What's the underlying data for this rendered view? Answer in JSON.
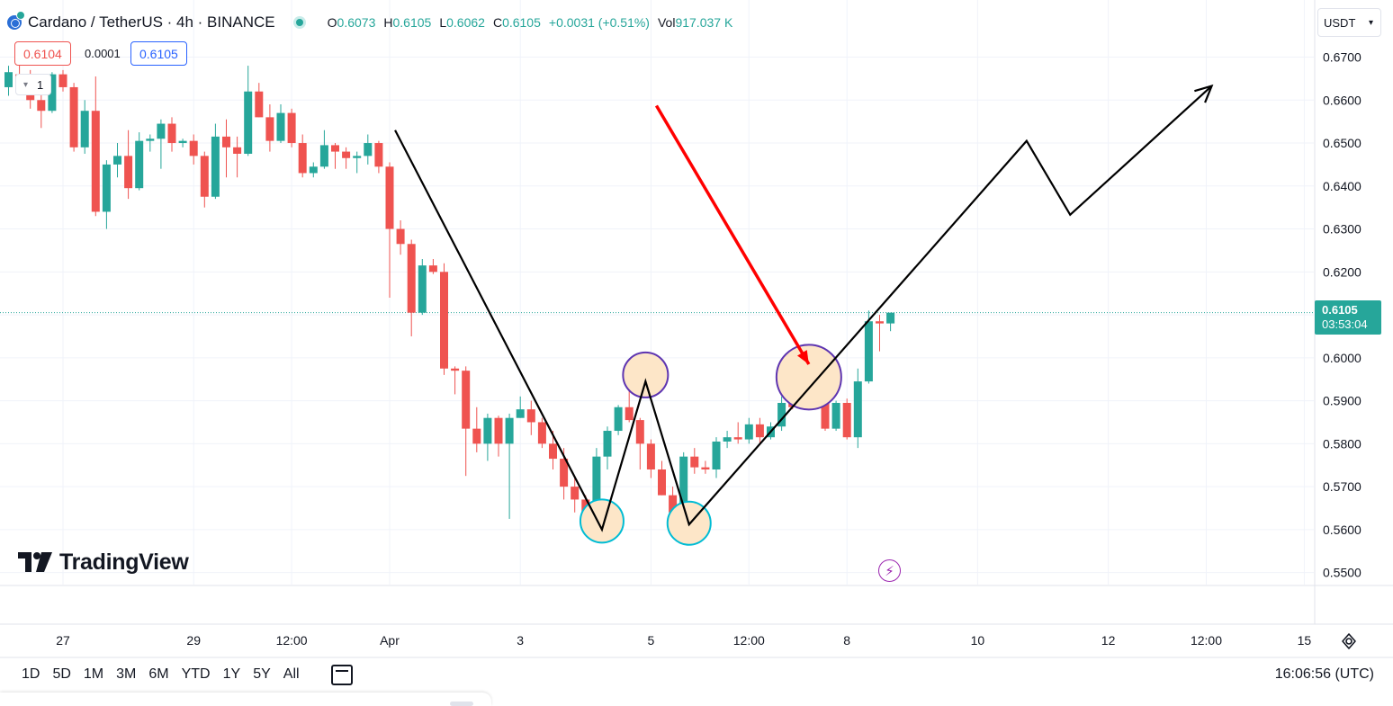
{
  "header": {
    "symbol": "Cardano / TetherUS · 4h · BINANCE",
    "ohlc": [
      {
        "key": "O",
        "value": "0.6073"
      },
      {
        "key": "H",
        "value": "0.6105"
      },
      {
        "key": "L",
        "value": "0.6062"
      },
      {
        "key": "C",
        "value": "0.6105"
      },
      {
        "key": "",
        "value": "+0.0031 (+0.51%)"
      },
      {
        "key": "Vol",
        "value": "917.037 K"
      }
    ]
  },
  "trade": {
    "sell": "0.6104",
    "spread": "0.0001",
    "buy": "0.6105",
    "quantity": "1"
  },
  "currency": "USDT",
  "last_price_tag": {
    "price": "0.6105",
    "countdown": "03:53:04"
  },
  "logo": "TradingView",
  "timeframes": [
    "1D",
    "5D",
    "1M",
    "3M",
    "6M",
    "YTD",
    "1Y",
    "5Y",
    "All"
  ],
  "clock": "16:06:56 (UTC)",
  "colors": {
    "up": "#26a69a",
    "down": "#ef5350",
    "grid": "#f0f3fa",
    "annotation_line": "#000000",
    "arrow": "#ff0000",
    "circle_fill": "#fde6c8"
  },
  "chart_data": {
    "type": "candlestick",
    "y_axis": {
      "ticks": [
        "0.6700",
        "0.6600",
        "0.6500",
        "0.6400",
        "0.6300",
        "0.6200",
        "0.6100",
        "0.6000",
        "0.5900",
        "0.5800",
        "0.5700",
        "0.5600",
        "0.5500"
      ],
      "range": [
        0.5472,
        0.6833
      ]
    },
    "x_axis": {
      "labels": [
        {
          "label": "27",
          "bar": 5
        },
        {
          "label": "29",
          "bar": 17
        },
        {
          "label": "12:00",
          "bar": 26
        },
        {
          "label": "Apr",
          "bar": 35
        },
        {
          "label": "3",
          "bar": 47
        },
        {
          "label": "5",
          "bar": 59
        },
        {
          "label": "12:00",
          "bar": 68
        },
        {
          "label": "8",
          "bar": 77
        },
        {
          "label": "10",
          "bar": 89
        },
        {
          "label": "12",
          "bar": 101
        },
        {
          "label": "12:00",
          "bar": 110
        },
        {
          "label": "15",
          "bar": 119
        }
      ]
    },
    "candles": [
      [
        0.663,
        0.6665,
        0.661,
        0.668
      ],
      [
        0.666,
        0.664,
        0.662,
        0.67
      ],
      [
        0.664,
        0.66,
        0.658,
        0.667
      ],
      [
        0.66,
        0.6575,
        0.6535,
        0.663
      ],
      [
        0.6575,
        0.666,
        0.657,
        0.6665
      ],
      [
        0.666,
        0.663,
        0.662,
        0.667
      ],
      [
        0.663,
        0.649,
        0.648,
        0.664
      ],
      [
        0.649,
        0.6575,
        0.6475,
        0.66
      ],
      [
        0.6575,
        0.634,
        0.633,
        0.6655
      ],
      [
        0.634,
        0.645,
        0.63,
        0.646
      ],
      [
        0.645,
        0.647,
        0.642,
        0.65
      ],
      [
        0.647,
        0.6395,
        0.637,
        0.653
      ],
      [
        0.6395,
        0.6505,
        0.639,
        0.6525
      ],
      [
        0.6505,
        0.651,
        0.648,
        0.652
      ],
      [
        0.651,
        0.6545,
        0.644,
        0.6555
      ],
      [
        0.6545,
        0.65,
        0.648,
        0.656
      ],
      [
        0.65,
        0.6505,
        0.649,
        0.651
      ],
      [
        0.6505,
        0.647,
        0.645,
        0.652
      ],
      [
        0.647,
        0.6375,
        0.635,
        0.648
      ],
      [
        0.6375,
        0.6515,
        0.637,
        0.6545
      ],
      [
        0.6515,
        0.649,
        0.642,
        0.6555
      ],
      [
        0.649,
        0.6475,
        0.642,
        0.6515
      ],
      [
        0.6475,
        0.662,
        0.647,
        0.668
      ],
      [
        0.662,
        0.656,
        0.656,
        0.664
      ],
      [
        0.656,
        0.6505,
        0.648,
        0.659
      ],
      [
        0.6505,
        0.657,
        0.65,
        0.659
      ],
      [
        0.657,
        0.65,
        0.649,
        0.658
      ],
      [
        0.65,
        0.643,
        0.642,
        0.652
      ],
      [
        0.643,
        0.6445,
        0.642,
        0.6455
      ],
      [
        0.6445,
        0.6495,
        0.644,
        0.653
      ],
      [
        0.6495,
        0.648,
        0.644,
        0.65
      ],
      [
        0.648,
        0.6465,
        0.644,
        0.649
      ],
      [
        0.6465,
        0.647,
        0.643,
        0.648
      ],
      [
        0.647,
        0.65,
        0.645,
        0.652
      ],
      [
        0.65,
        0.6445,
        0.643,
        0.6505
      ],
      [
        0.6445,
        0.63,
        0.614,
        0.6455
      ],
      [
        0.63,
        0.6265,
        0.624,
        0.632
      ],
      [
        0.6265,
        0.6105,
        0.605,
        0.6275
      ],
      [
        0.6105,
        0.6215,
        0.61,
        0.623
      ],
      [
        0.6215,
        0.62,
        0.6195,
        0.623
      ],
      [
        0.62,
        0.5975,
        0.596,
        0.622
      ],
      [
        0.5975,
        0.597,
        0.5915,
        0.598
      ],
      [
        0.597,
        0.5835,
        0.5725,
        0.598
      ],
      [
        0.5835,
        0.58,
        0.578,
        0.5885
      ],
      [
        0.58,
        0.586,
        0.576,
        0.587
      ],
      [
        0.586,
        0.58,
        0.577,
        0.5865
      ],
      [
        0.58,
        0.586,
        0.5625,
        0.587
      ],
      [
        0.586,
        0.588,
        0.586,
        0.591
      ],
      [
        0.588,
        0.585,
        0.582,
        0.59
      ],
      [
        0.585,
        0.58,
        0.579,
        0.586
      ],
      [
        0.58,
        0.5765,
        0.574,
        0.583
      ],
      [
        0.5765,
        0.57,
        0.567,
        0.579
      ],
      [
        0.57,
        0.567,
        0.564,
        0.572
      ],
      [
        0.567,
        0.563,
        0.561,
        0.568
      ],
      [
        0.563,
        0.577,
        0.56,
        0.579
      ],
      [
        0.577,
        0.583,
        0.574,
        0.584
      ],
      [
        0.583,
        0.5885,
        0.582,
        0.589
      ],
      [
        0.5885,
        0.5855,
        0.585,
        0.597
      ],
      [
        0.5855,
        0.58,
        0.574,
        0.586
      ],
      [
        0.58,
        0.574,
        0.572,
        0.581
      ],
      [
        0.574,
        0.568,
        0.568,
        0.576
      ],
      [
        0.568,
        0.564,
        0.562,
        0.57
      ],
      [
        0.564,
        0.577,
        0.561,
        0.578
      ],
      [
        0.577,
        0.5745,
        0.573,
        0.579
      ],
      [
        0.5745,
        0.574,
        0.573,
        0.576
      ],
      [
        0.574,
        0.5805,
        0.572,
        0.5815
      ],
      [
        0.5805,
        0.5815,
        0.579,
        0.583
      ],
      [
        0.5815,
        0.581,
        0.58,
        0.585
      ],
      [
        0.581,
        0.5845,
        0.58,
        0.586
      ],
      [
        0.5845,
        0.5815,
        0.58,
        0.586
      ],
      [
        0.5815,
        0.584,
        0.581,
        0.585
      ],
      [
        0.584,
        0.5895,
        0.583,
        0.591
      ],
      [
        0.5895,
        0.5885,
        0.588,
        0.592
      ],
      [
        0.5885,
        0.593,
        0.588,
        0.596
      ],
      [
        0.593,
        0.59,
        0.589,
        0.597
      ],
      [
        0.59,
        0.5835,
        0.583,
        0.5975
      ],
      [
        0.5835,
        0.5895,
        0.583,
        0.59
      ],
      [
        0.5895,
        0.5815,
        0.581,
        0.5905
      ],
      [
        0.5815,
        0.5945,
        0.579,
        0.5975
      ],
      [
        0.5945,
        0.6085,
        0.594,
        0.611
      ],
      [
        0.6085,
        0.608,
        0.6015,
        0.61
      ],
      [
        0.608,
        0.6105,
        0.6062,
        0.6105
      ]
    ],
    "current_price": 0.6105,
    "annotations": {
      "pattern_line": [
        [
          35.5,
          0.653
        ],
        [
          54.5,
          0.56
        ],
        [
          58.5,
          0.5945
        ],
        [
          62.5,
          0.5612
        ],
        [
          93.5,
          0.6505
        ],
        [
          97.5,
          0.6333
        ],
        [
          110.5,
          0.6633
        ]
      ],
      "red_arrow": [
        [
          59.5,
          0.6587
        ],
        [
          73.5,
          0.5985
        ]
      ],
      "circles": [
        {
          "center": [
            54.5,
            0.562
          ],
          "style": "teal"
        },
        {
          "center": [
            58.5,
            0.596
          ],
          "style": "purple"
        },
        {
          "center": [
            62.5,
            0.5615
          ],
          "style": "teal"
        },
        {
          "center": [
            73.5,
            0.5955
          ],
          "style": "purple"
        }
      ]
    }
  }
}
